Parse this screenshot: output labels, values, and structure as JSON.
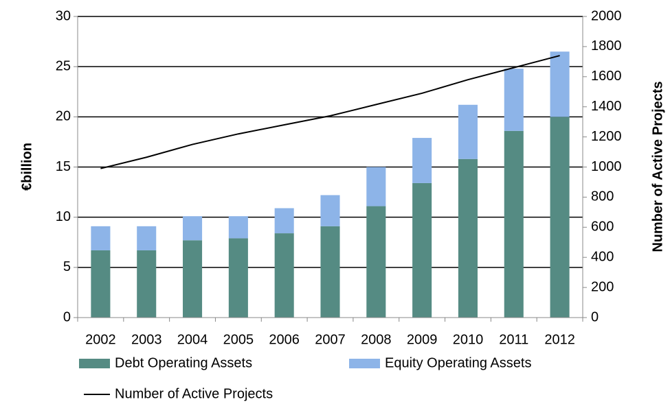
{
  "chart_data": {
    "type": "bar",
    "ylabel": "€billion",
    "y2label": "Number of Active Projects",
    "categories": [
      "2002",
      "2003",
      "2004",
      "2005",
      "2006",
      "2007",
      "2008",
      "2009",
      "2010",
      "2011",
      "2012"
    ],
    "series": [
      {
        "name": "Debt Operating Assets",
        "color": "#558b83",
        "values": [
          6.7,
          6.7,
          7.7,
          7.9,
          8.4,
          9.1,
          11.1,
          13.4,
          15.8,
          18.6,
          20.0
        ]
      },
      {
        "name": "Equity Operating Assets",
        "color": "#8db4e8",
        "values": [
          2.4,
          2.4,
          2.4,
          2.2,
          2.5,
          3.1,
          3.9,
          4.5,
          5.4,
          6.2,
          6.5
        ]
      },
      {
        "name": "Number of Active Projects",
        "color": "#000000",
        "type": "line",
        "axis": "y2",
        "values": [
          990,
          1065,
          1150,
          1220,
          1280,
          1340,
          1415,
          1490,
          1580,
          1660,
          1740
        ]
      }
    ],
    "stacked": true,
    "ylim": [
      0,
      30
    ],
    "yticks": [
      0,
      5,
      10,
      15,
      20,
      25,
      30
    ],
    "y2lim": [
      0,
      2000
    ],
    "y2ticks": [
      0,
      200,
      400,
      600,
      800,
      1000,
      1200,
      1400,
      1600,
      1800,
      2000
    ],
    "grid": true
  }
}
